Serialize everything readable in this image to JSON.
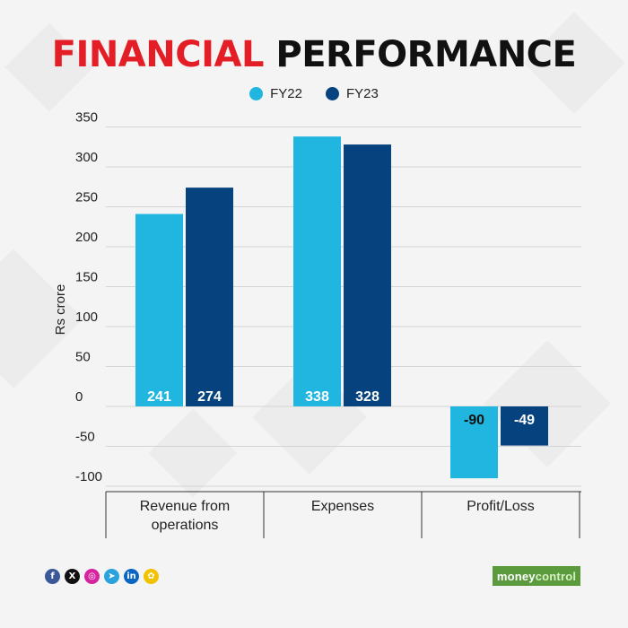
{
  "header": {
    "title_red": "FINANCIAL",
    "title_black": "PERFORMANCE"
  },
  "colors": {
    "fy22": "#20b6e0",
    "fy23": "#05427e",
    "title_red": "#e41e26",
    "grid": "#d4d4d4"
  },
  "chart_data": {
    "type": "bar",
    "title": "FINANCIAL PERFORMANCE",
    "ylabel": "Rs crore",
    "xlabel": "",
    "categories": [
      "Revenue from operations",
      "Expenses",
      "Profit/Loss"
    ],
    "category_lines": [
      [
        "Revenue from",
        "operations"
      ],
      [
        "Expenses"
      ],
      [
        "Profit/Loss"
      ]
    ],
    "series": [
      {
        "name": "FY22",
        "values": [
          241,
          338,
          -90
        ],
        "labels": [
          "241",
          "338",
          "-90"
        ]
      },
      {
        "name": "FY23",
        "values": [
          274,
          328,
          -49
        ],
        "labels": [
          "274",
          "328",
          "-49"
        ]
      }
    ],
    "yticks": [
      350,
      300,
      250,
      200,
      150,
      100,
      50,
      0,
      -50,
      -100
    ],
    "ylim": [
      -100,
      350
    ],
    "grid": true,
    "legend": "top-center"
  },
  "footer": {
    "social_icons": [
      "facebook-icon",
      "x-icon",
      "instagram-icon",
      "telegram-icon",
      "linkedin-icon",
      "snapchat-icon"
    ],
    "brand_part1": "money",
    "brand_part2": "control"
  }
}
